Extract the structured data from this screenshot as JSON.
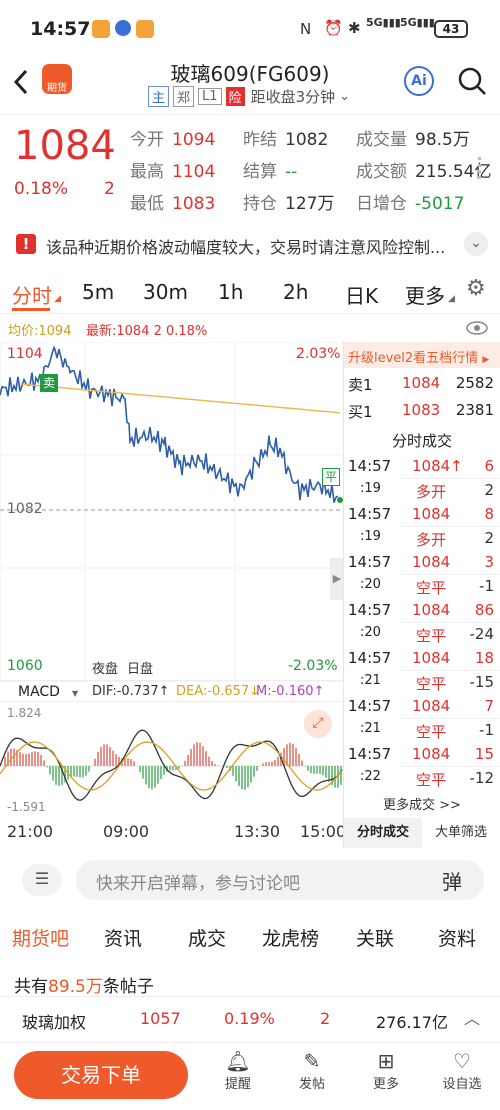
{
  "status": {
    "time": "14:57",
    "battery": "43"
  },
  "nav": {
    "title": "玻璃609(FG609)",
    "badges": [
      "主",
      "郑",
      "L1",
      "险"
    ],
    "close_note": "距收盘3分钟",
    "app_icon": "期货"
  },
  "quote": {
    "price": "1084",
    "change_pct": "0.18%",
    "change": "2",
    "fields": [
      {
        "label": "今开",
        "value": "1094"
      },
      {
        "label": "昨结",
        "value": "1082"
      },
      {
        "label": "成交量",
        "value": "98.5万"
      },
      {
        "label": "最高",
        "value": "1104"
      },
      {
        "label": "结算",
        "value": "--"
      },
      {
        "label": "成交额",
        "value": "215.54亿"
      },
      {
        "label": "最低",
        "value": "1083"
      },
      {
        "label": "持仓",
        "value": "127万"
      },
      {
        "label": "日增仓",
        "value": "-5017"
      }
    ]
  },
  "warning": "该品种近期价格波动幅度较大，交易时请注意风险控制...",
  "tabs": [
    "分时",
    "5m",
    "30m",
    "1h",
    "2h",
    "日K",
    "更多"
  ],
  "chart": {
    "avg_label": "均价:1094",
    "latest_label": "最新:1084  2  0.18%",
    "y_high": "1104",
    "y_low": "1060",
    "y_mid": "1082",
    "pct_high": "2.03%",
    "pct_low": "-2.03%",
    "sell_tag": "卖",
    "ping_tag": "平",
    "night_tag": "夜盘",
    "day_tag": "日盘",
    "macd_label": "MACD",
    "dif": "DIF:-0.737↑",
    "dea": "DEA:-0.657↓",
    "m": "M:-0.160↑",
    "macd_high": "1.824",
    "macd_low": "-1.591",
    "x_labels": [
      "21:00",
      "09:00",
      "13:30",
      "15:00"
    ]
  },
  "side": {
    "upgrade": "升级level2看五档行情",
    "ask": {
      "label": "卖1",
      "price": "1084",
      "vol": "2582"
    },
    "bid": {
      "label": "买1",
      "price": "1083",
      "vol": "2381"
    },
    "title": "分时成交",
    "trades": [
      {
        "t1": "14:57",
        "price": "1084↑",
        "vol": "6",
        "t2": ":19",
        "type": "多开",
        "vol2": "2"
      },
      {
        "t1": "14:57",
        "price": "1084",
        "vol": "8",
        "t2": ":19",
        "type": "多开",
        "vol2": "2"
      },
      {
        "t1": "14:57",
        "price": "1084",
        "vol": "3",
        "t2": ":20",
        "type": "空平",
        "vol2": "-1"
      },
      {
        "t1": "14:57",
        "price": "1084",
        "vol": "86",
        "t2": ":20",
        "type": "空平",
        "vol2": "-24"
      },
      {
        "t1": "14:57",
        "price": "1084",
        "vol": "18",
        "t2": ":21",
        "type": "空平",
        "vol2": "-15"
      },
      {
        "t1": "14:57",
        "price": "1084",
        "vol": "7",
        "t2": ":21",
        "type": "空平",
        "vol2": "-1"
      },
      {
        "t1": "14:57",
        "price": "1084",
        "vol": "15",
        "t2": ":22",
        "type": "空平",
        "vol2": "-12"
      }
    ],
    "more": "更多成交 >>",
    "btn1": "分时成交",
    "btn2": "大单筛选"
  },
  "comment": {
    "placeholder": "快来开启弹幕，参与讨论吧",
    "danmu": "弹"
  },
  "subtabs": [
    "期货吧",
    "资讯",
    "成交",
    "龙虎榜",
    "关联",
    "资料"
  ],
  "posts": {
    "prefix": "共有",
    "count": "89.5万",
    "suffix": "条帖子"
  },
  "ticker": {
    "name": "玻璃加权",
    "price": "1057",
    "pct": "0.19%",
    "chg": "2",
    "amount": "276.17亿"
  },
  "bottom": {
    "trade_btn": "交易下单",
    "items": [
      "提醒",
      "发帖",
      "更多",
      "设自选"
    ]
  },
  "colors": {
    "up": "#e0312f",
    "down": "#1f9a3f",
    "accent": "#ee5a2a",
    "line": "#2f5fa8",
    "avg": "#e6b94a"
  }
}
